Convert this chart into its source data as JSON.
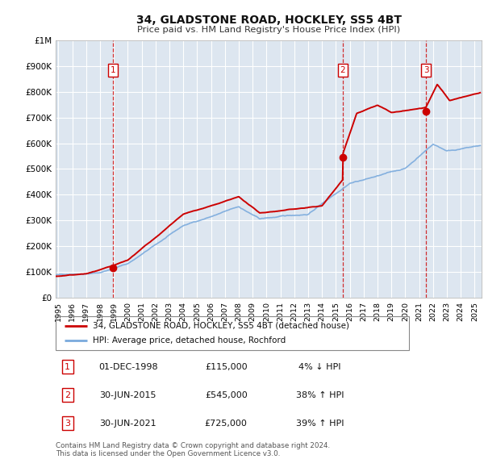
{
  "title": "34, GLADSTONE ROAD, HOCKLEY, SS5 4BT",
  "subtitle": "Price paid vs. HM Land Registry's House Price Index (HPI)",
  "plot_bg_color": "#dde6f0",
  "grid_color": "#ffffff",
  "red_line_color": "#cc0000",
  "blue_line_color": "#7aaadd",
  "vline_color": "#cc0000",
  "marker_color": "#cc0000",
  "ylim": [
    0,
    1000000
  ],
  "yticks": [
    0,
    100000,
    200000,
    300000,
    400000,
    500000,
    600000,
    700000,
    800000,
    900000,
    1000000
  ],
  "ytick_labels": [
    "£0",
    "£100K",
    "£200K",
    "£300K",
    "£400K",
    "£500K",
    "£600K",
    "£700K",
    "£800K",
    "£900K",
    "£1M"
  ],
  "xlim_start": 1994.8,
  "xlim_end": 2025.5,
  "xtick_years": [
    1995,
    1996,
    1997,
    1998,
    1999,
    2000,
    2001,
    2002,
    2003,
    2004,
    2005,
    2006,
    2007,
    2008,
    2009,
    2010,
    2011,
    2012,
    2013,
    2014,
    2015,
    2016,
    2017,
    2018,
    2019,
    2020,
    2021,
    2022,
    2023,
    2024,
    2025
  ],
  "transaction_dates": [
    1998.92,
    2015.5,
    2021.5
  ],
  "transaction_prices": [
    115000,
    545000,
    725000
  ],
  "transaction_labels": [
    "1",
    "2",
    "3"
  ],
  "vline_dates": [
    1998.92,
    2015.5,
    2021.5
  ],
  "legend_line1": "34, GLADSTONE ROAD, HOCKLEY, SS5 4BT (detached house)",
  "legend_line2": "HPI: Average price, detached house, Rochford",
  "table_data": [
    [
      "1",
      "01-DEC-1998",
      "£115,000",
      "4% ↓ HPI"
    ],
    [
      "2",
      "30-JUN-2015",
      "£545,000",
      "38% ↑ HPI"
    ],
    [
      "3",
      "30-JUN-2021",
      "£725,000",
      "39% ↑ HPI"
    ]
  ],
  "footer_text": "Contains HM Land Registry data © Crown copyright and database right 2024.\nThis data is licensed under the Open Government Licence v3.0.",
  "hpi_line_alpha": 0.9,
  "red_line_alpha": 1.0
}
